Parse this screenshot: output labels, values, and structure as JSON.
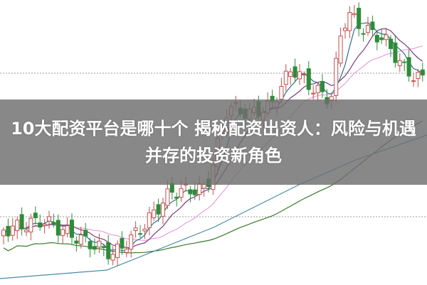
{
  "headline": "10大配资平台是哪十个 揭秘配资出资人：风险与机遇并存的投资新角色",
  "colors": {
    "up": "#c0504d",
    "down": "#2e8b3a",
    "ma5": "#2f6f8f",
    "ma10": "#7a3a7a",
    "ma20": "#e8a0e0",
    "ma60": "#3a7a2a",
    "ma120": "#4a8aa8",
    "grid": "#999999",
    "banner": "#6e6e6e"
  }
}
